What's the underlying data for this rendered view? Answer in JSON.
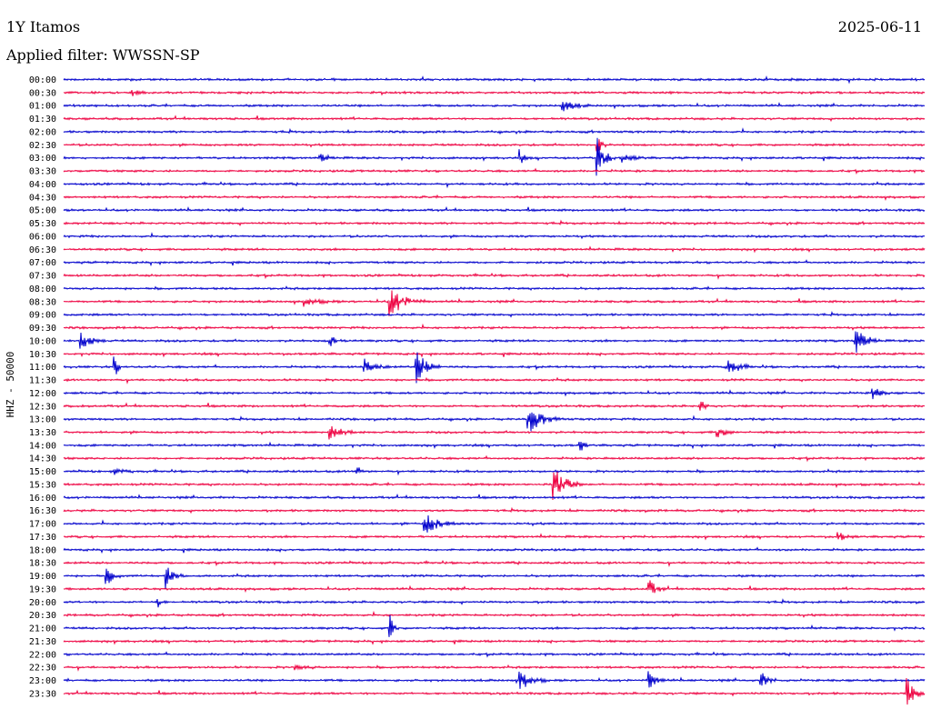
{
  "header": {
    "station": "1Y Itamos",
    "date": "2025-06-11",
    "filter": "Applied filter: WWSSN-SP"
  },
  "chart_data": {
    "type": "line",
    "title": "1Y Itamos",
    "subtitle": "Applied filter: WWSSN-SP",
    "ylabel": "HHZ - 50000",
    "colors": [
      "#0000cc",
      "#ee0040"
    ],
    "rows": [
      "00:00",
      "00:30",
      "01:00",
      "01:30",
      "02:00",
      "02:30",
      "03:00",
      "03:30",
      "04:00",
      "04:30",
      "05:00",
      "05:30",
      "06:00",
      "06:30",
      "07:00",
      "07:30",
      "08:00",
      "08:30",
      "09:00",
      "09:30",
      "10:00",
      "10:30",
      "11:00",
      "11:30",
      "12:00",
      "12:30",
      "13:00",
      "13:30",
      "14:00",
      "14:30",
      "15:00",
      "15:30",
      "16:00",
      "16:30",
      "17:00",
      "17:30",
      "18:00",
      "18:30",
      "19:00",
      "19:30",
      "20:00",
      "20:30",
      "21:00",
      "21:30",
      "22:00",
      "22:30",
      "23:00",
      "23:30"
    ],
    "events": [
      {
        "row": 1,
        "t": 0.08,
        "amp": 3,
        "dur": 0.02
      },
      {
        "row": 2,
        "t": 0.58,
        "amp": 7,
        "dur": 0.03
      },
      {
        "row": 5,
        "t": 0.62,
        "amp": 12,
        "dur": 0.01
      },
      {
        "row": 6,
        "t": 0.3,
        "amp": 4,
        "dur": 0.02
      },
      {
        "row": 6,
        "t": 0.53,
        "amp": 8,
        "dur": 0.01
      },
      {
        "row": 6,
        "t": 0.62,
        "amp": 26,
        "dur": 0.02
      },
      {
        "row": 6,
        "t": 0.65,
        "amp": 4,
        "dur": 0.03
      },
      {
        "row": 17,
        "t": 0.28,
        "amp": 4,
        "dur": 0.04
      },
      {
        "row": 17,
        "t": 0.38,
        "amp": 15,
        "dur": 0.04
      },
      {
        "row": 20,
        "t": 0.02,
        "amp": 9,
        "dur": 0.03
      },
      {
        "row": 20,
        "t": 0.31,
        "amp": 6,
        "dur": 0.02
      },
      {
        "row": 20,
        "t": 0.92,
        "amp": 14,
        "dur": 0.03
      },
      {
        "row": 22,
        "t": 0.06,
        "amp": 10,
        "dur": 0.01
      },
      {
        "row": 22,
        "t": 0.35,
        "amp": 8,
        "dur": 0.03
      },
      {
        "row": 22,
        "t": 0.41,
        "amp": 18,
        "dur": 0.03
      },
      {
        "row": 22,
        "t": 0.77,
        "amp": 11,
        "dur": 0.03
      },
      {
        "row": 24,
        "t": 0.94,
        "amp": 7,
        "dur": 0.02
      },
      {
        "row": 25,
        "t": 0.74,
        "amp": 9,
        "dur": 0.01
      },
      {
        "row": 26,
        "t": 0.54,
        "amp": 15,
        "dur": 0.04
      },
      {
        "row": 27,
        "t": 0.31,
        "amp": 9,
        "dur": 0.03
      },
      {
        "row": 27,
        "t": 0.76,
        "amp": 8,
        "dur": 0.02
      },
      {
        "row": 28,
        "t": 0.6,
        "amp": 8,
        "dur": 0.01
      },
      {
        "row": 30,
        "t": 0.06,
        "amp": 3,
        "dur": 0.03
      },
      {
        "row": 30,
        "t": 0.34,
        "amp": 9,
        "dur": 0.01
      },
      {
        "row": 31,
        "t": 0.57,
        "amp": 22,
        "dur": 0.03
      },
      {
        "row": 34,
        "t": 0.42,
        "amp": 11,
        "dur": 0.04
      },
      {
        "row": 35,
        "t": 0.9,
        "amp": 5,
        "dur": 0.02
      },
      {
        "row": 38,
        "t": 0.05,
        "amp": 10,
        "dur": 0.02
      },
      {
        "row": 38,
        "t": 0.12,
        "amp": 11,
        "dur": 0.02
      },
      {
        "row": 39,
        "t": 0.68,
        "amp": 10,
        "dur": 0.02
      },
      {
        "row": 40,
        "t": 0.11,
        "amp": 8,
        "dur": 0.01
      },
      {
        "row": 42,
        "t": 0.38,
        "amp": 11,
        "dur": 0.01
      },
      {
        "row": 45,
        "t": 0.27,
        "amp": 3,
        "dur": 0.03
      },
      {
        "row": 46,
        "t": 0.53,
        "amp": 11,
        "dur": 0.03
      },
      {
        "row": 46,
        "t": 0.68,
        "amp": 10,
        "dur": 0.02
      },
      {
        "row": 46,
        "t": 0.81,
        "amp": 9,
        "dur": 0.02
      },
      {
        "row": 47,
        "t": 0.98,
        "amp": 18,
        "dur": 0.02
      }
    ]
  }
}
